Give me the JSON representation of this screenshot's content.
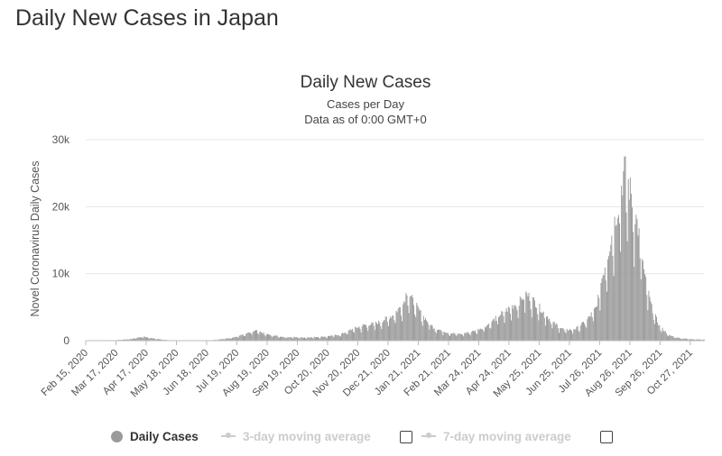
{
  "page": {
    "title": "Daily New Cases in Japan"
  },
  "colors": {
    "bars": "#9a9a9a",
    "grid": "#e6e6e6",
    "disabled_legend": "#cccccc",
    "text": "#333333"
  },
  "legend": {
    "items": [
      {
        "label": "Daily Cases",
        "icon": "circle-icon",
        "active": true
      },
      {
        "label": "3-day moving average",
        "icon": "line-marker-icon",
        "active": false
      },
      {
        "label": "7-day moving average",
        "icon": "line-marker-icon",
        "active": false
      }
    ]
  },
  "chart_data": {
    "type": "bar",
    "title": "Daily New Cases",
    "subtitle": "Cases per Day",
    "subtitle2": "Data as of 0:00 GMT+0",
    "ylabel": "Novel Coronavirus Daily Cases",
    "ylim": [
      0,
      30000
    ],
    "yticks": [
      {
        "value": 0,
        "label": "0"
      },
      {
        "value": 10000,
        "label": "10k"
      },
      {
        "value": 20000,
        "label": "20k"
      },
      {
        "value": 30000,
        "label": "30k"
      }
    ],
    "xrange": [
      "2020-02-15",
      "2021-11-10"
    ],
    "xtick_labels": [
      "Feb 15, 2020",
      "Mar 17, 2020",
      "Apr 17, 2020",
      "May 18, 2020",
      "Jun 18, 2020",
      "Jul 19, 2020",
      "Aug 19, 2020",
      "Sep 19, 2020",
      "Oct 20, 2020",
      "Nov 20, 2020",
      "Dec 21, 2020",
      "Jan 21, 2021",
      "Feb 21, 2021",
      "Mar 24, 2021",
      "Apr 24, 2021",
      "May 25, 2021",
      "Jun 25, 2021",
      "Jul 26, 2021",
      "Aug 26, 2021",
      "Sep 26, 2021",
      "Oct 27, 2021"
    ],
    "grid": true,
    "series": [
      {
        "name": "Daily Cases",
        "points": [
          [
            "2020-02-15",
            10
          ],
          [
            "2020-03-17",
            80
          ],
          [
            "2020-04-01",
            250
          ],
          [
            "2020-04-12",
            620
          ],
          [
            "2020-04-20",
            450
          ],
          [
            "2020-04-30",
            200
          ],
          [
            "2020-05-10",
            70
          ],
          [
            "2020-05-20",
            25
          ],
          [
            "2020-06-10",
            45
          ],
          [
            "2020-06-25",
            100
          ],
          [
            "2020-07-10",
            350
          ],
          [
            "2020-07-25",
            900
          ],
          [
            "2020-08-07",
            1500
          ],
          [
            "2020-08-20",
            900
          ],
          [
            "2020-09-05",
            550
          ],
          [
            "2020-09-25",
            480
          ],
          [
            "2020-10-15",
            600
          ],
          [
            "2020-11-01",
            900
          ],
          [
            "2020-11-15",
            1800
          ],
          [
            "2020-11-25",
            2300
          ],
          [
            "2020-12-10",
            2700
          ],
          [
            "2020-12-25",
            3800
          ],
          [
            "2021-01-05",
            5500
          ],
          [
            "2021-01-09",
            7500
          ],
          [
            "2021-01-15",
            6000
          ],
          [
            "2021-01-25",
            3800
          ],
          [
            "2021-02-05",
            2000
          ],
          [
            "2021-02-20",
            1200
          ],
          [
            "2021-03-05",
            1000
          ],
          [
            "2021-03-20",
            1500
          ],
          [
            "2021-04-01",
            2300
          ],
          [
            "2021-04-15",
            4000
          ],
          [
            "2021-04-25",
            5000
          ],
          [
            "2021-05-05",
            6000
          ],
          [
            "2021-05-10",
            7200
          ],
          [
            "2021-05-18",
            6200
          ],
          [
            "2021-05-28",
            4500
          ],
          [
            "2021-06-08",
            2700
          ],
          [
            "2021-06-20",
            1600
          ],
          [
            "2021-07-01",
            1800
          ],
          [
            "2021-07-12",
            3000
          ],
          [
            "2021-07-22",
            5000
          ],
          [
            "2021-07-28",
            9500
          ],
          [
            "2021-08-05",
            14500
          ],
          [
            "2021-08-13",
            20000
          ],
          [
            "2021-08-20",
            25800
          ],
          [
            "2021-08-27",
            22000
          ],
          [
            "2021-09-03",
            17000
          ],
          [
            "2021-09-10",
            9500
          ],
          [
            "2021-09-17",
            5000
          ],
          [
            "2021-09-25",
            2200
          ],
          [
            "2021-10-05",
            800
          ],
          [
            "2021-10-15",
            400
          ],
          [
            "2021-10-25",
            250
          ],
          [
            "2021-11-10",
            150
          ]
        ]
      }
    ]
  }
}
